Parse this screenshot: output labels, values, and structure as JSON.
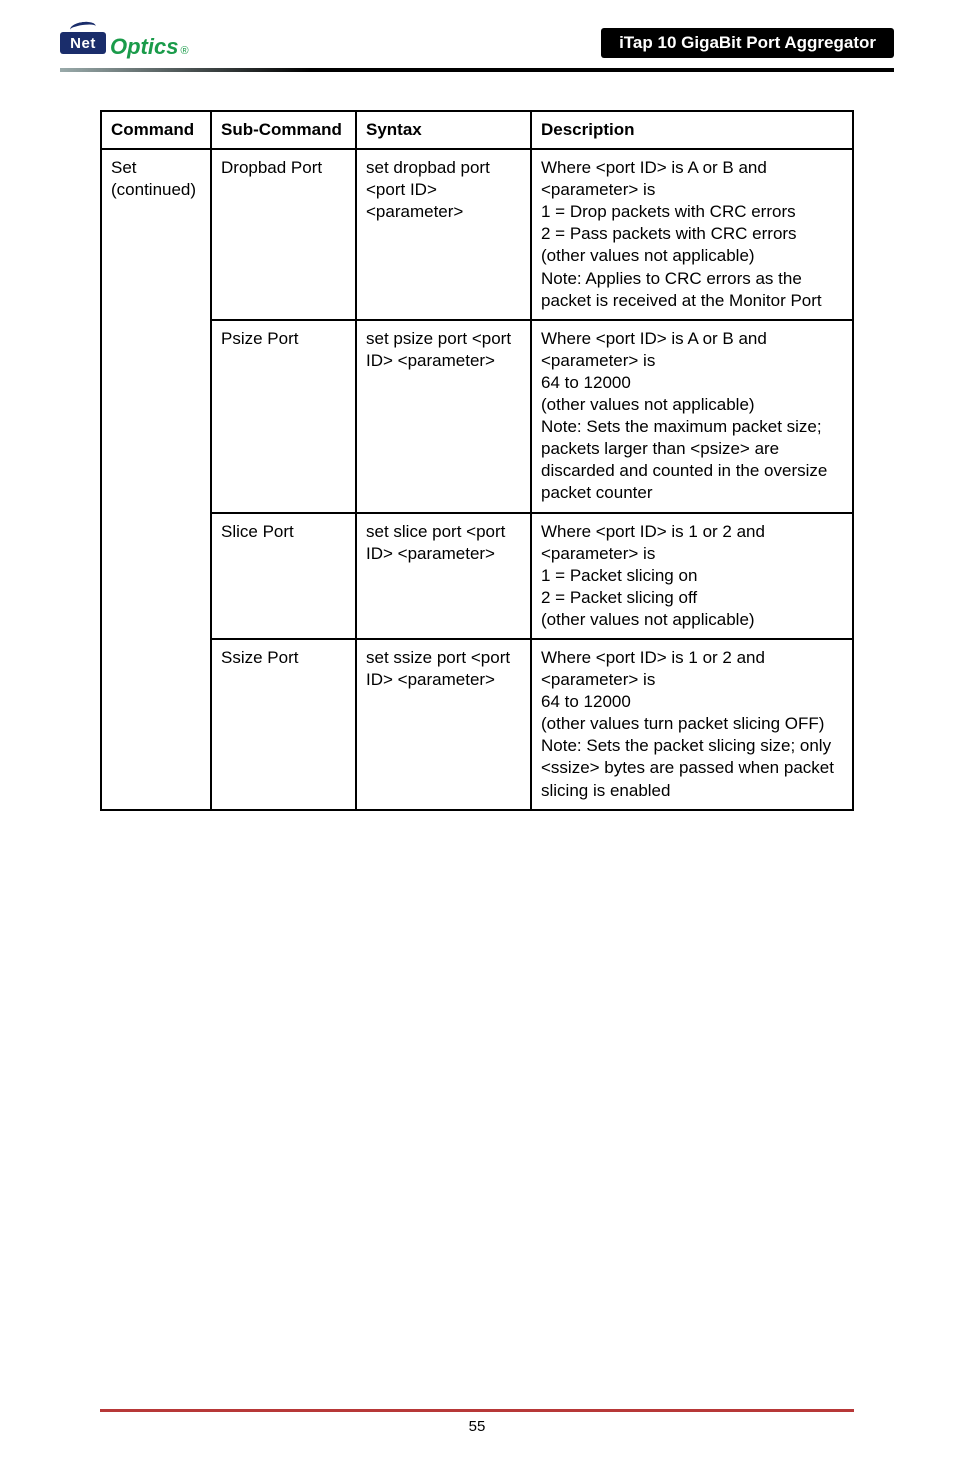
{
  "header": {
    "logo_net": "Net",
    "logo_optics": "Optics",
    "logo_reg": "®",
    "title": "iTap 10 GigaBit Port Aggregator"
  },
  "table": {
    "headers": {
      "command": "Command",
      "sub_command": "Sub-Command",
      "syntax": "Syntax",
      "description": "Description"
    },
    "command_cell": "Set (continued)",
    "rows": [
      {
        "sub": "Dropbad Port",
        "syntax": "set dropbad port <port ID> <parameter>",
        "desc": "Where <port ID> is A or B and <parameter> is\n1 = Drop packets with CRC errors\n2 = Pass packets with CRC errors\n(other values not applicable)\nNote: Applies to CRC errors as the packet is received at the Monitor Port"
      },
      {
        "sub": "Psize Port",
        "syntax": "set psize port <port ID> <parameter>",
        "desc": "Where <port ID> is A or B and <parameter> is\n64 to 12000\n(other values not applicable)\nNote: Sets the maximum packet size; packets larger than <psize> are discarded and counted in the oversize packet counter"
      },
      {
        "sub": "Slice Port",
        "syntax": "set slice port <port ID> <parameter>",
        "desc": "Where <port ID> is 1 or 2 and <parameter> is\n1 = Packet slicing on\n2 = Packet slicing off\n(other values not applicable)"
      },
      {
        "sub": "Ssize Port",
        "syntax": "set ssize port <port ID> <parameter>",
        "desc": "Where <port ID> is 1 or 2 and <parameter> is\n64 to 12000\n(other values turn packet slicing OFF)\nNote: Sets the packet slicing size; only <ssize> bytes are passed when packet slicing is enabled"
      }
    ]
  },
  "footer": {
    "page": "55"
  },
  "colors": {
    "brand_blue": "#1a2d6b",
    "brand_green": "#1a9b4a",
    "footer_red": "#b73838",
    "text": "#000000"
  }
}
